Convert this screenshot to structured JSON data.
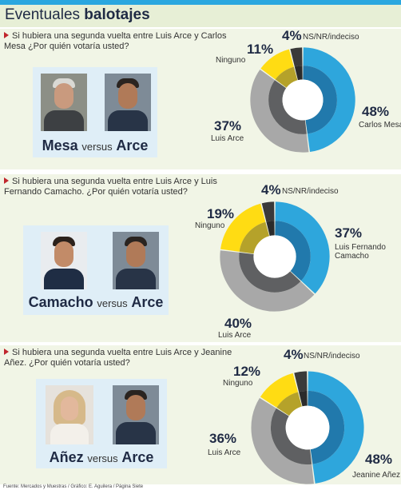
{
  "header": {
    "title_light": "Eventuales",
    "title_bold": "balotajes"
  },
  "colors": {
    "accent": "#2aa7df",
    "panel_bg": "#f1f5e6",
    "blue": "#2ea6dc",
    "blue_inner": "#2179ac",
    "gray_outer": "#a8a8a8",
    "gray_inner": "#5f6062",
    "yellow_outer": "#ffdc13",
    "yellow_inner": "#b5a22a",
    "black_outer": "#3a3a3a",
    "black_inner": "#2b2b2b",
    "question_bullet": "#c0262d"
  },
  "panels": [
    {
      "question": "Si hubiera una segunda vuelta entre Luis Arce y Carlos Mesa ¿Por quién votaría usted?",
      "candidate_a": "Mesa",
      "versus": "versus",
      "candidate_b": "Arce",
      "photo_icons": [
        "mesa-portrait",
        "arce-portrait"
      ]
    },
    {
      "question": "Si hubiera una segunda vuelta entre  Luis Arce y Luis Fernando Camacho. ¿Por quién votaría usted?",
      "candidate_a": "Camacho",
      "versus": "versus",
      "candidate_b": "Arce",
      "photo_icons": [
        "camacho-portrait",
        "arce-portrait"
      ]
    },
    {
      "question": "Si hubiera una segunda vuelta entre Luis Arce y Jeanine Añez. ¿Por quién votaría usted?",
      "candidate_a": "Añez",
      "versus": "versus",
      "candidate_b": "Arce",
      "photo_icons": [
        "anez-portrait",
        "arce-portrait"
      ]
    }
  ],
  "chart_data": [
    {
      "type": "pie",
      "title": "Si hubiera una segunda vuelta entre Luis Arce y Carlos Mesa ¿Por quién votaría usted?",
      "categories": [
        "Carlos Mesa",
        "Luis Arce",
        "Ninguno",
        "NS/NR/indeciso"
      ],
      "values": [
        48,
        37,
        11,
        4
      ],
      "value_labels": [
        "48%",
        "37%",
        "11%",
        "4%"
      ],
      "colors": [
        "#2ea6dc",
        "#a8a8a8",
        "#ffdc13",
        "#3a3a3a"
      ]
    },
    {
      "type": "pie",
      "title": "Si hubiera una segunda vuelta entre  Luis Arce y Luis Fernando Camacho. ¿Por quién votaría usted?",
      "categories": [
        "Luis Fernando Camacho",
        "Luis Arce",
        "Ninguno",
        "NS/NR/indeciso"
      ],
      "values": [
        37,
        40,
        19,
        4
      ],
      "value_labels": [
        "37%",
        "40%",
        "19%",
        "4%"
      ],
      "colors": [
        "#2ea6dc",
        "#a8a8a8",
        "#ffdc13",
        "#3a3a3a"
      ]
    },
    {
      "type": "pie",
      "title": "Si hubiera una segunda vuelta entre Luis Arce y Jeanine Añez. ¿Por quién votaría usted?",
      "categories": [
        "Jeanine Añez",
        "Luis Arce",
        "Ninguno",
        "NS/NR/indeciso"
      ],
      "values": [
        48,
        36,
        12,
        4
      ],
      "value_labels": [
        "48%",
        "36%",
        "12%",
        "4%"
      ],
      "colors": [
        "#2ea6dc",
        "#a8a8a8",
        "#ffdc13",
        "#3a3a3a"
      ]
    }
  ],
  "footer": {
    "source": "Fuente: Mercados y Muestras  / Gráfico: E. Aguilera / Página Siete"
  }
}
